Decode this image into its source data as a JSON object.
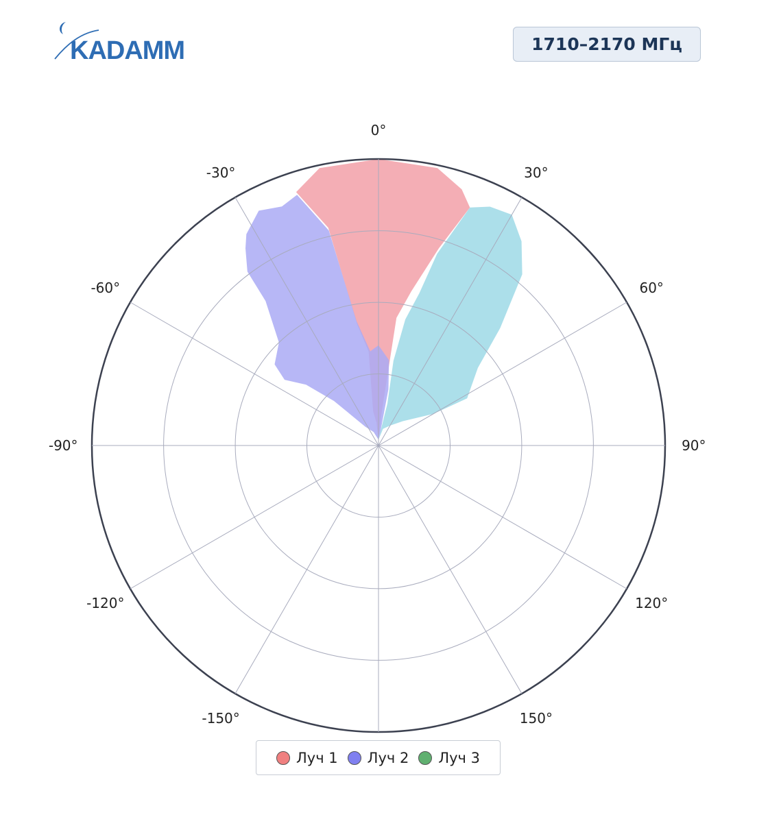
{
  "logo": {
    "text": "KADAMM",
    "color": "#2e6db4"
  },
  "band_label": "1710–2170 МГц",
  "chart_data": {
    "type": "polar-area",
    "theta_ticks": [
      0,
      30,
      60,
      90,
      120,
      150,
      180,
      -150,
      -120,
      -90,
      -60,
      -30
    ],
    "theta_labels": [
      "0°",
      "30°",
      "60°",
      "90°",
      "120°",
      "150°",
      "",
      "-150°",
      "-120°",
      "-90°",
      "-60°",
      "-30°"
    ],
    "radial_rings": 4,
    "grid": true,
    "legend_position": "bottom-center",
    "series": [
      {
        "name": "Луч 1",
        "color": "#f08080",
        "fill": "#f2a0a8",
        "points": [
          [
            0,
            0.02
          ],
          [
            -5,
            0.08
          ],
          [
            -9,
            0.12
          ],
          [
            -6,
            0.33
          ],
          [
            -10,
            0.43
          ],
          [
            -13,
            0.78
          ],
          [
            -18,
            0.93
          ],
          [
            -12,
            0.99
          ],
          [
            0,
            1.0
          ],
          [
            12,
            0.99
          ],
          [
            18,
            0.94
          ],
          [
            21,
            0.89
          ],
          [
            17,
            0.72
          ],
          [
            12,
            0.55
          ],
          [
            8,
            0.45
          ],
          [
            5,
            0.1
          ]
        ]
      },
      {
        "name": "Луч 2",
        "color": "#8080f0",
        "fill": "#aaaaf5",
        "points": [
          [
            0,
            0.02
          ],
          [
            -20,
            0.05
          ],
          [
            -35,
            0.08
          ],
          [
            -45,
            0.22
          ],
          [
            -50,
            0.33
          ],
          [
            -55,
            0.4
          ],
          [
            -52,
            0.46
          ],
          [
            -44,
            0.5
          ],
          [
            -38,
            0.64
          ],
          [
            -37,
            0.76
          ],
          [
            -34,
            0.83
          ],
          [
            -32,
            0.87
          ],
          [
            -27,
            0.92
          ],
          [
            -22,
            0.9
          ],
          [
            -18,
            0.92
          ],
          [
            -13,
            0.77
          ],
          [
            -10,
            0.44
          ],
          [
            -5,
            0.33
          ],
          [
            0,
            0.35
          ],
          [
            7,
            0.3
          ],
          [
            10,
            0.2
          ],
          [
            8,
            0.05
          ]
        ]
      },
      {
        "name": "Луч 3",
        "color": "#60b070",
        "fill": "#9ed9e6",
        "points": [
          [
            0,
            0.02
          ],
          [
            15,
            0.06
          ],
          [
            30,
            0.08
          ],
          [
            45,
            0.12
          ],
          [
            60,
            0.22
          ],
          [
            62,
            0.35
          ],
          [
            52,
            0.44
          ],
          [
            46,
            0.59
          ],
          [
            40,
            0.78
          ],
          [
            35,
            0.87
          ],
          [
            30,
            0.93
          ],
          [
            25,
            0.92
          ],
          [
            21,
            0.89
          ],
          [
            17,
            0.7
          ],
          [
            15,
            0.55
          ],
          [
            12,
            0.45
          ],
          [
            10,
            0.3
          ],
          [
            12,
            0.15
          ],
          [
            8,
            0.05
          ]
        ]
      }
    ]
  }
}
